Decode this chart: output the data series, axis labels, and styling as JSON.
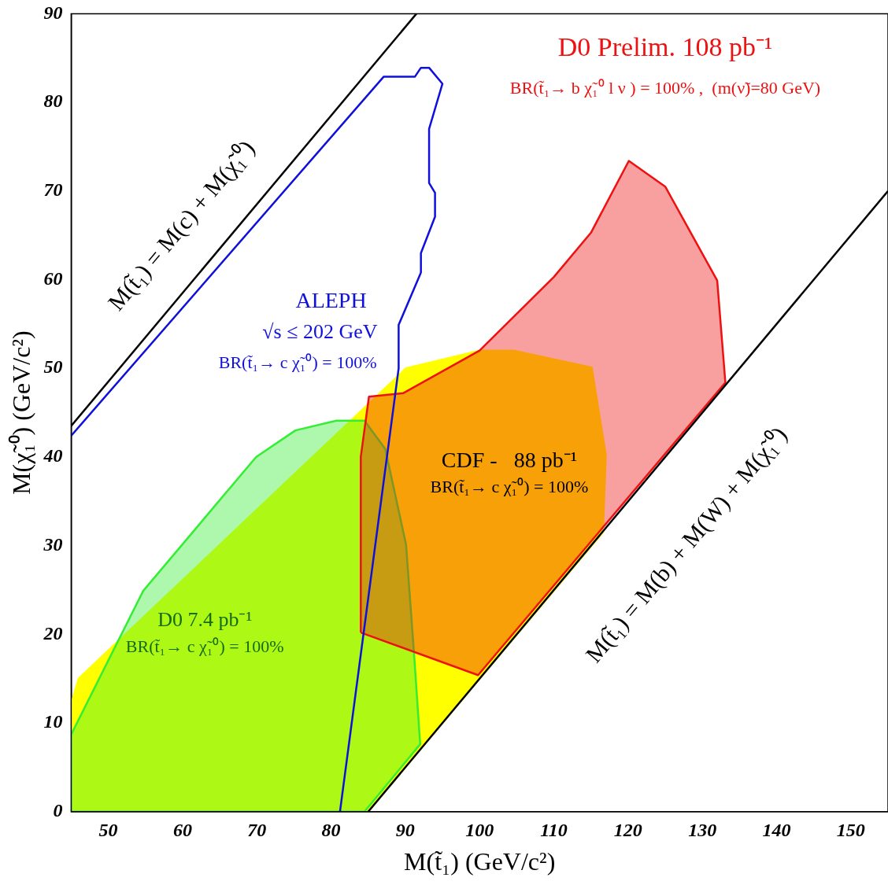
{
  "chart_data": {
    "type": "area",
    "xlabel": "M(t̃₁) (GeV/c²)",
    "ylabel": "M(χ̃₁⁰) (GeV/c²)",
    "xlim": [
      45,
      155
    ],
    "ylim": [
      0,
      90
    ],
    "xticks": [
      50,
      60,
      70,
      80,
      90,
      100,
      110,
      120,
      130,
      140,
      150
    ],
    "yticks": [
      0,
      10,
      20,
      30,
      40,
      50,
      60,
      70,
      80,
      90
    ],
    "series": [
      {
        "color": "#ffff00",
        "x": [
          45,
          46,
          90.1,
          100,
          104.6,
          115.1,
          117,
          116.6,
          99.8,
          85,
          45,
          45
        ],
        "values": [
          12.1,
          15,
          50,
          52,
          52,
          50.1,
          40.2,
          31.5,
          14.8,
          0,
          0,
          12.1
        ]
      },
      {
        "color": "#33ee33",
        "x": [
          45,
          54.7,
          69.9,
          75.2,
          80.7,
          84.5,
          87.3,
          90.1,
          91.2,
          92,
          84.5,
          45,
          45
        ],
        "values": [
          8.7,
          24.9,
          40,
          43,
          44.1,
          44.1,
          40.9,
          30.1,
          17.5,
          7.6,
          0,
          0,
          8.7
        ]
      },
      {
        "color": "#ee1111",
        "x": [
          84,
          84,
          85.1,
          89.7,
          100,
          110,
          115,
          120.1,
          125,
          132,
          133.1,
          99.8,
          84
        ],
        "values": [
          20.2,
          40,
          46.8,
          47.2,
          52,
          60.3,
          65.3,
          73.4,
          70.5,
          59.9,
          48.4,
          15.4,
          20.2
        ]
      },
      {
        "type": "line",
        "color": "#1010dd",
        "x": [
          45,
          87.1,
          91.3,
          92.1,
          93.2,
          95,
          93.2,
          93.2,
          94,
          94,
          92.1,
          92.1,
          89.1,
          89.1,
          81.2
        ],
        "values": [
          42.4,
          82.9,
          82.9,
          83.9,
          83.9,
          82.1,
          77,
          70.9,
          69.8,
          67.1,
          63,
          60.8,
          54.9,
          50,
          0
        ]
      },
      {
        "type": "line",
        "color": "#000000",
        "x": [
          45,
          91.5
        ],
        "values": [
          43.5,
          90
        ]
      },
      {
        "type": "line",
        "color": "#000000",
        "x": [
          85,
          155
        ],
        "values": [
          0,
          70
        ]
      }
    ],
    "annotations": [
      "M(t̃₁) = M(c) + M(χ̃₁⁰)",
      "M(t̃₁) = M(b) + M(W) + M(χ̃₁⁰)",
      "D0 Prelim. 108 pb⁻¹",
      "BR(t̃₁→ b χ̃₁⁰ l ν ) = 100% ,  (m(ν̃)=80 GeV)",
      "ALEPH",
      "√s ≤ 202 GeV",
      "BR(t̃₁→ c χ̃₁⁰) = 100%",
      "CDF -   88 pb⁻¹",
      "BR(t̃₁→ c χ̃₁⁰) = 100%",
      "D0 7.4 pb⁻¹",
      "BR(t̃₁→ c χ̃₁⁰) = 100%"
    ]
  }
}
